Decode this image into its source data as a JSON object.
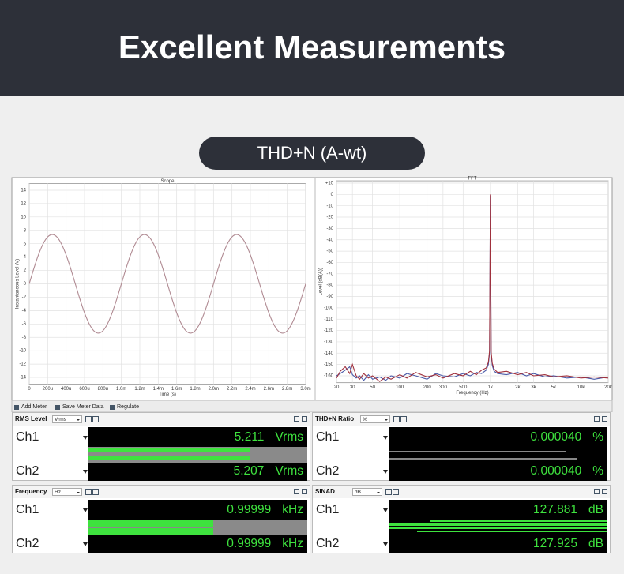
{
  "header": {
    "title": "Excellent Measurements"
  },
  "badge": "THD+N (A-wt)",
  "scope": {
    "type": "line",
    "title": "Scope",
    "x_label": "Time (s)",
    "y_label": "Instantaneous Level (V)",
    "xlim": [
      0,
      0.003
    ],
    "ylim": [
      -15,
      15
    ],
    "grid": true,
    "log_x": false,
    "xticks": [
      0,
      {
        "value": 0.0002,
        "label": "200u"
      },
      {
        "value": 0.0004,
        "label": "400u"
      },
      {
        "value": 0.0006,
        "label": "600u"
      },
      {
        "value": 0.0008,
        "label": "800u"
      },
      {
        "value": 0.001,
        "label": "1.0m"
      },
      {
        "value": 0.0012,
        "label": "1.2m"
      },
      {
        "value": 0.0014,
        "label": "1.4m"
      },
      {
        "value": 0.0016,
        "label": "1.6m"
      },
      {
        "value": 0.0018,
        "label": "1.8m"
      },
      {
        "value": 0.002,
        "label": "2.0m"
      },
      {
        "value": 0.0022,
        "label": "2.2m"
      },
      {
        "value": 0.0024,
        "label": "2.4m"
      },
      {
        "value": 0.0026,
        "label": "2.6m"
      },
      {
        "value": 0.0028,
        "label": "2.8m"
      },
      {
        "value": 0.003,
        "label": "3.0m"
      }
    ],
    "yticks": [
      14,
      12,
      10,
      8,
      6,
      4,
      2,
      0,
      -2,
      -4,
      -6,
      -8,
      -10,
      -12,
      -14
    ],
    "x": [
      0,
      5e-05,
      0.0001,
      0.00015,
      0.0002,
      0.00025,
      0.0003,
      0.00035,
      0.0004,
      0.00045,
      0.0005,
      0.00055,
      0.0006,
      0.00065,
      0.0007,
      0.00075,
      0.0008,
      0.00085,
      0.0009,
      0.00095,
      0.001,
      0.00105,
      0.0011,
      0.00115,
      0.0012,
      0.00125,
      0.0013,
      0.00135,
      0.0014,
      0.00145,
      0.0015,
      0.00155,
      0.0016,
      0.00165,
      0.0017,
      0.00175,
      0.0018,
      0.00185,
      0.0019,
      0.00195,
      0.002,
      0.00205,
      0.0021,
      0.00215,
      0.0022,
      0.00225,
      0.0023,
      0.00235,
      0.0024,
      0.00245,
      0.0025,
      0.00255,
      0.0026,
      0.00265,
      0.0027,
      0.00275,
      0.0028,
      0.00285,
      0.0029,
      0.00295,
      0.003
    ],
    "series": [
      {
        "color": "#b08a92",
        "values": [
          0,
          2.28,
          4.33,
          5.96,
          7.01,
          7.37,
          7.01,
          5.96,
          4.33,
          2.28,
          0,
          -2.28,
          -4.33,
          -5.96,
          -7.01,
          -7.37,
          -7.01,
          -5.96,
          -4.33,
          -2.28,
          0,
          2.28,
          4.33,
          5.96,
          7.01,
          7.37,
          7.01,
          5.96,
          4.33,
          2.28,
          0,
          -2.28,
          -4.33,
          -5.96,
          -7.01,
          -7.37,
          -7.01,
          -5.96,
          -4.33,
          -2.28,
          0,
          2.28,
          4.33,
          5.96,
          7.01,
          7.37,
          7.01,
          5.96,
          4.33,
          2.28,
          0,
          -2.28,
          -4.33,
          -5.96,
          -7.01,
          -7.37,
          -7.01,
          -5.96,
          -4.33,
          -2.28,
          0
        ]
      }
    ]
  },
  "fft": {
    "type": "line",
    "title": "FFT",
    "x_label": "Frequency (Hz)",
    "y_label": "Level (dB(A))",
    "xlim": [
      20,
      20000
    ],
    "ylim": [
      -166,
      12
    ],
    "grid": true,
    "log_x": true,
    "xticks": [
      20,
      30,
      50,
      100,
      200,
      300,
      500,
      {
        "value": 1000,
        "label": "1k"
      },
      {
        "value": 2000,
        "label": "2k"
      },
      {
        "value": 3000,
        "label": "3k"
      },
      {
        "value": 5000,
        "label": "5k"
      },
      {
        "value": 10000,
        "label": "10k"
      },
      {
        "value": 20000,
        "label": "20k"
      }
    ],
    "yticks": [
      {
        "value": 10,
        "label": "+10"
      },
      0,
      -10,
      -20,
      -30,
      -40,
      -50,
      -60,
      -70,
      -80,
      -90,
      -100,
      -110,
      -120,
      -130,
      -140,
      -150,
      -160
    ],
    "x": [
      20,
      22,
      25,
      28,
      30,
      33,
      36,
      40,
      45,
      50,
      60,
      70,
      80,
      100,
      120,
      150,
      200,
      250,
      300,
      400,
      500,
      600,
      700,
      800,
      900,
      950,
      980,
      1000,
      1020,
      1050,
      1100,
      1200,
      1500,
      2000,
      2500,
      3000,
      4000,
      5000,
      7000,
      10000,
      14000,
      20000
    ],
    "series": [
      {
        "color": "#4a5aa8",
        "values": [
          -160,
          -158,
          -155,
          -152,
          -159,
          -162,
          -160,
          -164,
          -159,
          -163,
          -161,
          -164,
          -160,
          -162,
          -158,
          -160,
          -163,
          -158,
          -160,
          -161,
          -158,
          -160,
          -157,
          -158,
          -155,
          -150,
          -140,
          -1,
          -141,
          -151,
          -156,
          -158,
          -159,
          -157,
          -160,
          -158,
          -161,
          -160,
          -162,
          -161,
          -163,
          -161
        ]
      },
      {
        "color": "#a0303c",
        "values": [
          -162,
          -156,
          -152,
          -158,
          -150,
          -160,
          -163,
          -158,
          -162,
          -160,
          -165,
          -161,
          -163,
          -159,
          -162,
          -157,
          -161,
          -159,
          -162,
          -158,
          -160,
          -156,
          -159,
          -155,
          -153,
          -148,
          -138,
          0,
          -139,
          -149,
          -154,
          -157,
          -156,
          -159,
          -157,
          -160,
          -159,
          -161,
          -160,
          -162,
          -161,
          -162
        ]
      }
    ]
  },
  "toolbar": [
    "Add Meter",
    "Save Meter Data",
    "Regulate"
  ],
  "meters": [
    {
      "title": "RMS Level",
      "unit_select": "Vrms",
      "channels": [
        {
          "name": "Ch1",
          "reading": "5.211",
          "unit": "Vrms"
        },
        {
          "name": "Ch2",
          "reading": "5.207",
          "unit": "Vrms"
        }
      ]
    },
    {
      "title": "THD+N Ratio",
      "unit_select": "%",
      "channels": [
        {
          "name": "Ch1",
          "reading": "0.000040",
          "unit": "%"
        },
        {
          "name": "Ch2",
          "reading": "0.000040",
          "unit": "%"
        }
      ]
    },
    {
      "title": "Frequency",
      "unit_select": "Hz",
      "channels": [
        {
          "name": "Ch1",
          "reading": "0.99999",
          "unit": "kHz"
        },
        {
          "name": "Ch2",
          "reading": "0.99999",
          "unit": "kHz"
        }
      ]
    },
    {
      "title": "SINAD",
      "unit_select": "dB",
      "channels": [
        {
          "name": "Ch1",
          "reading": "127.881",
          "unit": "dB"
        },
        {
          "name": "Ch2",
          "reading": "127.925",
          "unit": "dB"
        }
      ]
    }
  ]
}
